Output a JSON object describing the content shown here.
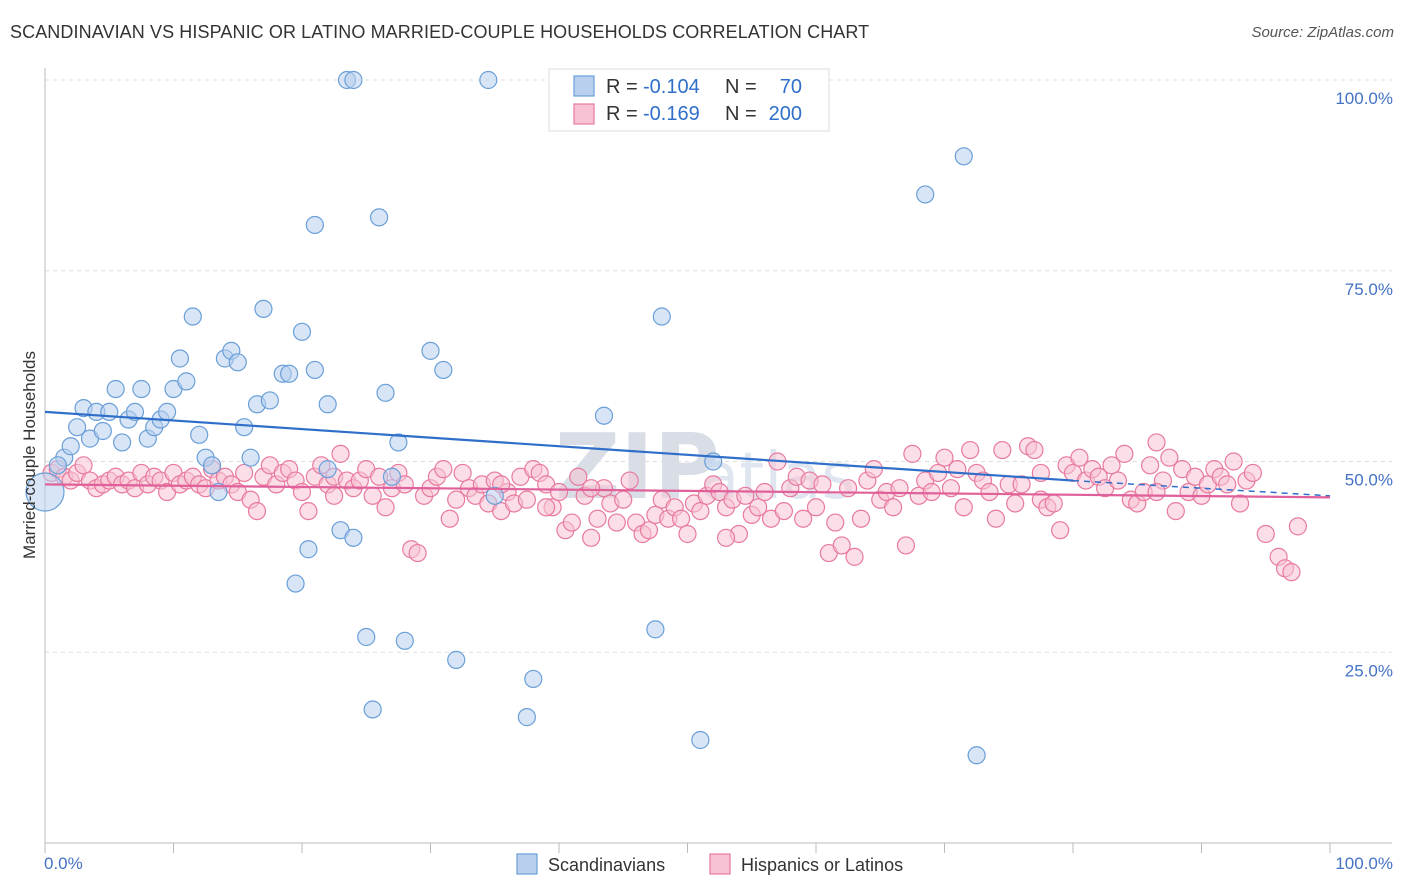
{
  "title": "SCANDINAVIAN VS HISPANIC OR LATINO MARRIED-COUPLE HOUSEHOLDS CORRELATION CHART",
  "source": "Source: ZipAtlas.com",
  "watermark": {
    "main": "ZIP",
    "sub": "atlas"
  },
  "chart_data": {
    "type": "scatter",
    "ylabel": "Married-couple Households",
    "xlim": [
      0,
      100
    ],
    "ylim": [
      0,
      105
    ],
    "x_tick_labels": {
      "left": "0.0%",
      "right": "100.0%"
    },
    "y_ticks": [
      {
        "value": 100,
        "label": "100.0%"
      },
      {
        "value": 75,
        "label": "75.0%"
      },
      {
        "value": 50,
        "label": "50.0%"
      },
      {
        "value": 25,
        "label": "25.0%"
      }
    ],
    "grid": true,
    "legend": {
      "placement": "top-center",
      "entries": [
        {
          "r_label": "R =",
          "r_value": "-0.104",
          "n_label": "N =",
          "n_value": "70"
        },
        {
          "r_label": "R =",
          "r_value": "-0.169",
          "n_label": "N =",
          "n_value": "200"
        }
      ]
    },
    "series": [
      {
        "name": "Scandinavians",
        "color": "#6a9fd8",
        "fill": "#b8d0ee",
        "trend_color": "#2f6fc9",
        "trend": {
          "x0": 0,
          "y0": 56.5,
          "x1": 80,
          "y1": 47.5,
          "dash_to_x": 100,
          "dash_to_y": 45.5
        },
        "points": [
          [
            0,
            46
          ],
          [
            1.5,
            50.5
          ],
          [
            2,
            52
          ],
          [
            1,
            49.5
          ],
          [
            2.5,
            54.5
          ],
          [
            3,
            57
          ],
          [
            3.5,
            53
          ],
          [
            4,
            56.5
          ],
          [
            4.5,
            54
          ],
          [
            5,
            56.5
          ],
          [
            5.5,
            59.5
          ],
          [
            6,
            52.5
          ],
          [
            6.5,
            55.5
          ],
          [
            7,
            56.5
          ],
          [
            7.5,
            59.5
          ],
          [
            8,
            53
          ],
          [
            8.5,
            54.5
          ],
          [
            9,
            55.5
          ],
          [
            9.5,
            56.5
          ],
          [
            10,
            59.5
          ],
          [
            10.5,
            63.5
          ],
          [
            11,
            60.5
          ],
          [
            11.5,
            69
          ],
          [
            12,
            53.5
          ],
          [
            12.5,
            50.5
          ],
          [
            13,
            49.5
          ],
          [
            13.5,
            46
          ],
          [
            14,
            63.5
          ],
          [
            14.5,
            64.5
          ],
          [
            15,
            63
          ],
          [
            15.5,
            54.5
          ],
          [
            16,
            50.5
          ],
          [
            16.5,
            57.5
          ],
          [
            17,
            70
          ],
          [
            17.5,
            58
          ],
          [
            18.5,
            61.5
          ],
          [
            19,
            61.5
          ],
          [
            19.5,
            34
          ],
          [
            20,
            67
          ],
          [
            20.5,
            38.5
          ],
          [
            21,
            62
          ],
          [
            21,
            81
          ],
          [
            22,
            57.5
          ],
          [
            22,
            49
          ],
          [
            23,
            41
          ],
          [
            23.5,
            100
          ],
          [
            24,
            100
          ],
          [
            24,
            40
          ],
          [
            25,
            27
          ],
          [
            25.5,
            17.5
          ],
          [
            26,
            82
          ],
          [
            26.5,
            59
          ],
          [
            27,
            48
          ],
          [
            27.5,
            52.5
          ],
          [
            28,
            26.5
          ],
          [
            30,
            64.5
          ],
          [
            31,
            62
          ],
          [
            32,
            24
          ],
          [
            34.5,
            100
          ],
          [
            35,
            45.5
          ],
          [
            37.5,
            16.5
          ],
          [
            38,
            21.5
          ],
          [
            43.5,
            56
          ],
          [
            47.5,
            28
          ],
          [
            48,
            69
          ],
          [
            51,
            13.5
          ],
          [
            52,
            50
          ],
          [
            68.5,
            85
          ],
          [
            71.5,
            90
          ],
          [
            72.5,
            11.5
          ]
        ]
      },
      {
        "name": "Hispanics or Latinos",
        "color": "#e87aa0",
        "fill": "#f7c3d4",
        "trend_color": "#e0609a",
        "trend": {
          "x0": 0,
          "y0": 47,
          "x1": 100,
          "y1": 45.3
        },
        "points": [
          [
            0.5,
            48.5
          ],
          [
            1,
            49
          ],
          [
            1.5,
            48
          ],
          [
            2,
            47.5
          ],
          [
            2.5,
            48.5
          ],
          [
            3,
            49.5
          ],
          [
            3.5,
            47.5
          ],
          [
            4,
            46.5
          ],
          [
            4.5,
            47
          ],
          [
            5,
            47.5
          ],
          [
            5.5,
            48
          ],
          [
            6,
            47
          ],
          [
            6.5,
            47.5
          ],
          [
            7,
            46.5
          ],
          [
            7.5,
            48.5
          ],
          [
            8,
            47
          ],
          [
            8.5,
            48
          ],
          [
            9,
            47.5
          ],
          [
            9.5,
            46
          ],
          [
            10,
            48.5
          ],
          [
            10.5,
            47
          ],
          [
            11,
            47.5
          ],
          [
            11.5,
            48
          ],
          [
            12,
            47
          ],
          [
            12.5,
            46.5
          ],
          [
            13,
            49
          ],
          [
            13.5,
            47.5
          ],
          [
            14,
            48
          ],
          [
            14.5,
            47
          ],
          [
            15,
            46
          ],
          [
            15.5,
            48.5
          ],
          [
            16,
            45
          ],
          [
            16.5,
            43.5
          ],
          [
            17,
            48
          ],
          [
            17.5,
            49.5
          ],
          [
            18,
            47
          ],
          [
            18.5,
            48.5
          ],
          [
            19,
            49
          ],
          [
            19.5,
            47.5
          ],
          [
            20,
            46
          ],
          [
            20.5,
            43.5
          ],
          [
            21,
            48
          ],
          [
            21.5,
            49.5
          ],
          [
            22,
            47
          ],
          [
            22.5,
            48
          ],
          [
            23,
            51
          ],
          [
            23.5,
            47.5
          ],
          [
            24,
            46.5
          ],
          [
            24.5,
            47.5
          ],
          [
            25,
            49
          ],
          [
            25.5,
            45.5
          ],
          [
            26,
            48
          ],
          [
            26.5,
            44
          ],
          [
            27,
            46.5
          ],
          [
            27.5,
            48.5
          ],
          [
            28,
            47
          ],
          [
            28.5,
            38.5
          ],
          [
            29,
            38
          ],
          [
            29.5,
            45.5
          ],
          [
            30,
            46.5
          ],
          [
            30.5,
            48
          ],
          [
            31,
            49
          ],
          [
            31.5,
            42.5
          ],
          [
            32,
            45
          ],
          [
            32.5,
            48.5
          ],
          [
            33,
            46.5
          ],
          [
            33.5,
            45.5
          ],
          [
            34,
            47
          ],
          [
            34.5,
            44.5
          ],
          [
            35,
            47.5
          ],
          [
            35.5,
            43.5
          ],
          [
            36,
            46
          ],
          [
            36.5,
            44.5
          ],
          [
            37,
            48
          ],
          [
            37.5,
            45
          ],
          [
            38,
            49
          ],
          [
            38.5,
            48.5
          ],
          [
            39,
            47
          ],
          [
            39.5,
            44
          ],
          [
            40,
            46
          ],
          [
            40.5,
            41
          ],
          [
            41,
            42
          ],
          [
            41.5,
            48
          ],
          [
            42,
            45.5
          ],
          [
            42.5,
            40
          ],
          [
            43,
            42.5
          ],
          [
            43.5,
            46.5
          ],
          [
            44,
            44.5
          ],
          [
            44.5,
            42
          ],
          [
            45,
            45
          ],
          [
            45.5,
            47.5
          ],
          [
            46,
            42
          ],
          [
            46.5,
            40.5
          ],
          [
            47,
            41
          ],
          [
            47.5,
            43
          ],
          [
            48,
            45
          ],
          [
            48.5,
            42.5
          ],
          [
            49,
            44
          ],
          [
            49.5,
            42.5
          ],
          [
            50,
            40.5
          ],
          [
            50.5,
            44.5
          ],
          [
            51,
            43.5
          ],
          [
            51.5,
            45.5
          ],
          [
            52,
            47
          ],
          [
            52.5,
            46
          ],
          [
            53,
            44
          ],
          [
            53.5,
            45
          ],
          [
            54,
            40.5
          ],
          [
            54.5,
            45.5
          ],
          [
            55,
            43
          ],
          [
            55.5,
            44
          ],
          [
            56,
            46
          ],
          [
            56.5,
            42.5
          ],
          [
            57,
            50
          ],
          [
            57.5,
            43.5
          ],
          [
            58,
            46.5
          ],
          [
            58.5,
            48
          ],
          [
            59,
            42.5
          ],
          [
            59.5,
            47.5
          ],
          [
            60,
            44
          ],
          [
            60.5,
            47
          ],
          [
            61,
            38
          ],
          [
            61.5,
            42
          ],
          [
            62,
            39
          ],
          [
            62.5,
            46.5
          ],
          [
            63,
            37.5
          ],
          [
            63.5,
            42.5
          ],
          [
            64,
            47.5
          ],
          [
            64.5,
            49
          ],
          [
            65,
            45
          ],
          [
            65.5,
            46
          ],
          [
            66,
            44
          ],
          [
            66.5,
            46.5
          ],
          [
            67,
            39
          ],
          [
            67.5,
            51
          ],
          [
            68,
            45.5
          ],
          [
            68.5,
            47.5
          ],
          [
            69,
            46
          ],
          [
            69.5,
            48.5
          ],
          [
            70,
            50.5
          ],
          [
            70.5,
            46.5
          ],
          [
            71,
            49
          ],
          [
            71.5,
            44
          ],
          [
            72,
            51.5
          ],
          [
            72.5,
            48.5
          ],
          [
            73,
            47.5
          ],
          [
            73.5,
            46
          ],
          [
            74,
            42.5
          ],
          [
            74.5,
            51.5
          ],
          [
            75,
            47
          ],
          [
            75.5,
            44.5
          ],
          [
            76,
            47
          ],
          [
            76.5,
            52
          ],
          [
            77,
            51.5
          ],
          [
            77.5,
            45
          ],
          [
            78,
            44
          ],
          [
            78.5,
            44.5
          ],
          [
            79,
            41
          ],
          [
            79.5,
            49.5
          ],
          [
            80,
            48.5
          ],
          [
            80.5,
            50.5
          ],
          [
            81,
            47.5
          ],
          [
            81.5,
            49
          ],
          [
            82,
            48
          ],
          [
            82.5,
            46.5
          ],
          [
            83,
            49.5
          ],
          [
            83.5,
            47.5
          ],
          [
            84,
            51
          ],
          [
            84.5,
            45
          ],
          [
            85,
            44.5
          ],
          [
            85.5,
            46
          ],
          [
            86,
            49.5
          ],
          [
            86.5,
            52.5
          ],
          [
            87,
            47.5
          ],
          [
            87.5,
            50.5
          ],
          [
            88,
            43.5
          ],
          [
            88.5,
            49
          ],
          [
            89,
            46
          ],
          [
            89.5,
            48
          ],
          [
            90,
            45.5
          ],
          [
            90.5,
            47
          ],
          [
            91,
            49
          ],
          [
            91.5,
            48
          ],
          [
            92,
            47
          ],
          [
            92.5,
            50
          ],
          [
            93,
            44.5
          ],
          [
            93.5,
            47.5
          ],
          [
            94,
            48.5
          ],
          [
            95,
            40.5
          ],
          [
            96,
            37.5
          ],
          [
            96.5,
            36
          ],
          [
            97,
            35.5
          ],
          [
            97.5,
            41.5
          ],
          [
            42.5,
            46.5
          ],
          [
            35.5,
            47
          ],
          [
            22.5,
            45.5
          ],
          [
            39,
            44
          ],
          [
            53,
            40
          ],
          [
            77.5,
            48.5
          ],
          [
            86.5,
            46
          ]
        ]
      }
    ]
  }
}
